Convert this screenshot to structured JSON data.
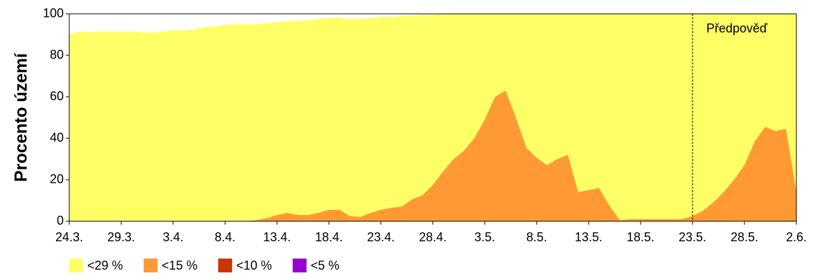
{
  "chart_data": {
    "type": "area",
    "y_label": "Procento území",
    "categories": [
      "24.3.",
      null,
      null,
      null,
      null,
      "29.3.",
      null,
      null,
      null,
      null,
      "3.4.",
      null,
      null,
      null,
      null,
      "8.4.",
      null,
      null,
      null,
      null,
      "13.4.",
      null,
      null,
      null,
      null,
      "18.4.",
      null,
      null,
      null,
      null,
      "23.4.",
      null,
      null,
      null,
      null,
      "28.4.",
      null,
      null,
      null,
      null,
      "3.5.",
      null,
      null,
      null,
      null,
      "8.5.",
      null,
      null,
      null,
      null,
      "13.5.",
      null,
      null,
      null,
      null,
      "18.5.",
      null,
      null,
      null,
      null,
      "23.5.",
      null,
      null,
      null,
      null,
      "28.5.",
      null,
      null,
      null,
      null,
      "2.6."
    ],
    "series": [
      {
        "name": "<29 %",
        "color": "#ffff66",
        "values": [
          90,
          91.5,
          91,
          91.5,
          91.5,
          91.5,
          91.5,
          91,
          91,
          91.5,
          92,
          92,
          92.5,
          93.5,
          94,
          94.5,
          95,
          95,
          95,
          95.5,
          96,
          96.5,
          96.5,
          97,
          97.5,
          98,
          98,
          97.5,
          97.5,
          98,
          98.5,
          98.5,
          99,
          99,
          99.5,
          99.5,
          100,
          100,
          100,
          100,
          100,
          100,
          100,
          100,
          100,
          100,
          100,
          100,
          100,
          100,
          100,
          100,
          100,
          100,
          100,
          100,
          100,
          100,
          100,
          100,
          100,
          100,
          100,
          100,
          100,
          100,
          100,
          100,
          100,
          100,
          100
        ]
      },
      {
        "name": "<15 %",
        "color": "#ff9933",
        "values": [
          0,
          0,
          0,
          0,
          0,
          0,
          0,
          0,
          0,
          0,
          0,
          0,
          0,
          0,
          0,
          0,
          0,
          0,
          0.5,
          1.5,
          3,
          4,
          3,
          3,
          4,
          5.5,
          5.5,
          2.5,
          2,
          4,
          5.5,
          6.5,
          7,
          10.5,
          12.5,
          17.5,
          24,
          30,
          34,
          40,
          49,
          60,
          63,
          50,
          35.5,
          30.5,
          27,
          30,
          32,
          14,
          15,
          16,
          7.5,
          0.5,
          1,
          1,
          1,
          1,
          1,
          1,
          2.5,
          5,
          9,
          14,
          20,
          27,
          38.5,
          45.5,
          43.5,
          44.5,
          14
        ]
      },
      {
        "name": "<10 %",
        "color": "#cc3300",
        "values": [
          0,
          0,
          0,
          0,
          0,
          0,
          0,
          0,
          0,
          0,
          0,
          0,
          0,
          0,
          0,
          0,
          0,
          0,
          0,
          0,
          0,
          0,
          0,
          0,
          0,
          0,
          0,
          0,
          0,
          0,
          0,
          0,
          0,
          0,
          0,
          0,
          0,
          0,
          0,
          0,
          0,
          0,
          0,
          0,
          0,
          0,
          0,
          0,
          0,
          0,
          0,
          0,
          0,
          0,
          0,
          0,
          0,
          0,
          0,
          0,
          0,
          0,
          0,
          0,
          0,
          0,
          0,
          0,
          0,
          0,
          0
        ]
      },
      {
        "name": "<5 %",
        "color": "#9900cc",
        "values": [
          0,
          0,
          0,
          0,
          0,
          0,
          0,
          0,
          0,
          0,
          0,
          0,
          0,
          0,
          0,
          0,
          0,
          0,
          0,
          0,
          0,
          0,
          0,
          0,
          0,
          0,
          0,
          0,
          0,
          0,
          0,
          0,
          0,
          0,
          0,
          0,
          0,
          0,
          0,
          0,
          0,
          0,
          0,
          0,
          0,
          0,
          0,
          0,
          0,
          0,
          0,
          0,
          0,
          0,
          0,
          0,
          0,
          0,
          0,
          0,
          0,
          0,
          0,
          0,
          0,
          0,
          0,
          0,
          0,
          0,
          0
        ]
      }
    ],
    "forecast": {
      "label": "Předpověď",
      "x": "23.5."
    },
    "ylim": [
      0,
      100
    ],
    "yticks": [
      0,
      20,
      40,
      60,
      80,
      100
    ],
    "grid": false,
    "legend": "bottom-left"
  }
}
